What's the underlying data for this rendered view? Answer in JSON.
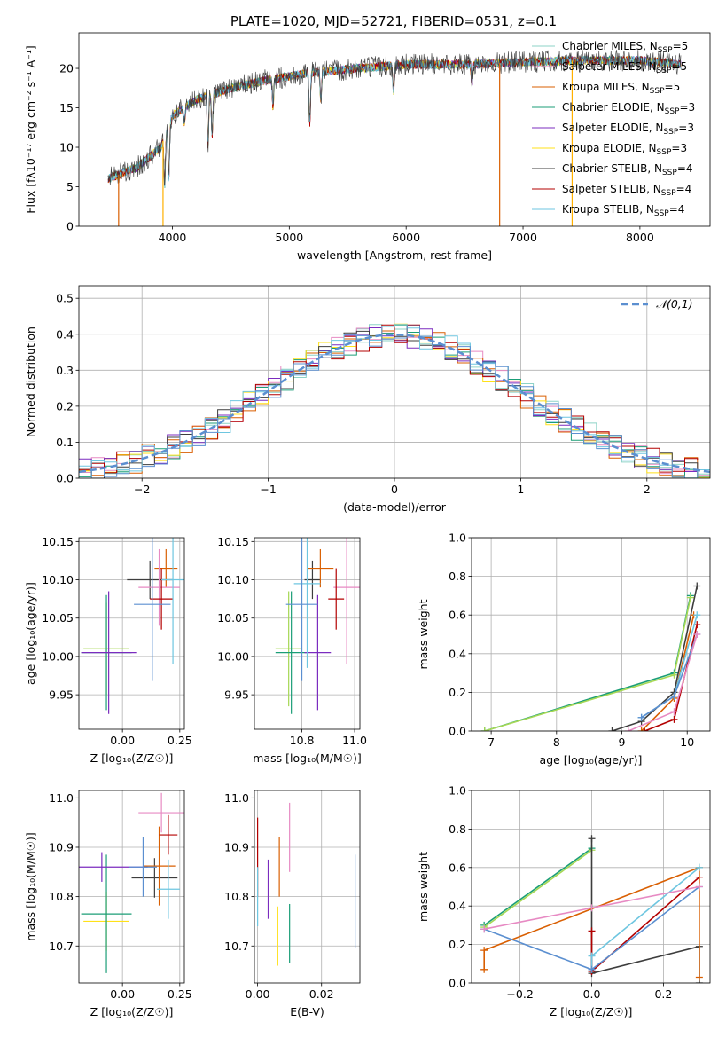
{
  "figure": {
    "title": "PLATE=1020, MJD=52721, FIBERID=0531, z=0.1",
    "colors": [
      "#8dd3c7",
      "#e78ac3",
      "#d95f02",
      "#1b9e77",
      "#7b2cbf",
      "#ffe119",
      "#3d3d3d",
      "#b30000",
      "#6ec6e0"
    ]
  },
  "chart_data": [
    {
      "id": "spectrum",
      "type": "line",
      "xlabel": "wavelength [Angstrom, rest frame]",
      "ylabel": "Flux [fλ10⁻¹⁷ erg cm⁻² s⁻¹ A⁻¹]",
      "xlim": [
        3200,
        8600
      ],
      "ylim": [
        0,
        24.5
      ],
      "xticks": [
        4000,
        5000,
        6000,
        7000,
        8000
      ],
      "yticks": [
        0,
        5,
        10,
        15,
        20
      ],
      "legend": "top-right",
      "series": [
        {
          "name": "Chabrier MILES, N_SSP=5",
          "color": "#8dd3c7"
        },
        {
          "name": "Salpeter MILES, N_SSP=5",
          "color": "#e78ac3"
        },
        {
          "name": "Kroupa MILES, N_SSP=5",
          "color": "#d95f02"
        },
        {
          "name": "Chabrier ELODIE, N_SSP=3",
          "color": "#1b9e77"
        },
        {
          "name": "Salpeter ELODIE, N_SSP=3",
          "color": "#7b2cbf"
        },
        {
          "name": "Kroupa ELODIE, N_SSP=3",
          "color": "#ffe119"
        },
        {
          "name": "Chabrier STELIB, N_SSP=4",
          "color": "#3d3d3d"
        },
        {
          "name": "Salpeter STELIB, N_SSP=4",
          "color": "#b30000"
        },
        {
          "name": "Kroupa STELIB, N_SSP=4",
          "color": "#6ec6e0"
        }
      ],
      "continuum": {
        "x": [
          3450,
          3700,
          3900,
          4000,
          4200,
          4500,
          4800,
          5200,
          5600,
          6000,
          6500,
          7000,
          7500,
          8000,
          8350
        ],
        "y": [
          6.0,
          7.5,
          10.0,
          14.0,
          16.0,
          17.5,
          18.5,
          19.5,
          20.0,
          20.5,
          20.5,
          20.8,
          21.0,
          21.0,
          20.5
        ]
      },
      "absorption_lines": [
        {
          "x": 3934,
          "y": 5.0
        },
        {
          "x": 3969,
          "y": 6.0
        },
        {
          "x": 4102,
          "y": 13.0
        },
        {
          "x": 4304,
          "y": 10.0
        },
        {
          "x": 4340,
          "y": 11.5
        },
        {
          "x": 4861,
          "y": 15.0
        },
        {
          "x": 5175,
          "y": 13.0
        },
        {
          "x": 5270,
          "y": 16.0
        },
        {
          "x": 5892,
          "y": 17.0
        },
        {
          "x": 6563,
          "y": 18.0
        }
      ],
      "spikes": [
        {
          "x": 3540,
          "y": 0
        },
        {
          "x": 3920,
          "y": 0
        },
        {
          "x": 6800,
          "y": 0
        },
        {
          "x": 7420,
          "y": 0
        }
      ]
    },
    {
      "id": "residuals",
      "type": "area",
      "xlabel": "(data-model)/error",
      "ylabel": "Normed distribution",
      "xlim": [
        -2.5,
        2.5
      ],
      "ylim": [
        0,
        0.535
      ],
      "xticks": [
        -2,
        -1,
        0,
        1,
        2
      ],
      "yticks": [
        0.0,
        0.1,
        0.2,
        0.3,
        0.4,
        0.5
      ],
      "grid": true,
      "legend": "top-right",
      "reference": {
        "name": "𝒩(0,1)",
        "color": "#5b8fd0",
        "style": "dashed"
      },
      "bin_width": 0.1
    },
    {
      "id": "age-vs-Z",
      "type": "scatter",
      "xlabel": "Z [log₁₀(Z/Z☉)]",
      "ylabel": "age  [log₁₀(age/yr)]",
      "xlim": [
        -0.19,
        0.27
      ],
      "ylim": [
        9.905,
        10.155
      ],
      "xticks": [
        0.0,
        0.25
      ],
      "yticks": [
        9.95,
        10.0,
        10.05,
        10.1,
        10.15
      ],
      "grid": true,
      "points": [
        {
          "x": -0.07,
          "y": 10.01,
          "xerr": 0.1,
          "yerr": 0.06,
          "color": "#a6d854"
        },
        {
          "x": -0.07,
          "y": 10.005,
          "xerr": 0.11,
          "yerr": 0.075,
          "color": "#1b9e77"
        },
        {
          "x": -0.06,
          "y": 10.005,
          "xerr": 0.12,
          "yerr": 0.08,
          "color": "#7b2cbf"
        },
        {
          "x": 0.12,
          "y": 10.1,
          "xerr": 0.1,
          "yerr": 0.025,
          "color": "#3d3d3d"
        },
        {
          "x": 0.19,
          "y": 10.115,
          "xerr": 0.05,
          "yerr": 0.025,
          "color": "#d95f02"
        },
        {
          "x": 0.16,
          "y": 10.09,
          "xerr": 0.09,
          "yerr": 0.05,
          "color": "#e78ac3"
        },
        {
          "x": 0.17,
          "y": 10.075,
          "xerr": 0.05,
          "yerr": 0.04,
          "color": "#b30000"
        },
        {
          "x": 0.22,
          "y": 10.1,
          "xerr": 0.05,
          "yerr": 0.11,
          "color": "#6ec6e0"
        },
        {
          "x": 0.13,
          "y": 10.068,
          "xerr": 0.08,
          "yerr": 0.1,
          "color": "#5b8fd0"
        }
      ]
    },
    {
      "id": "age-vs-mass",
      "type": "scatter",
      "xlabel": "mass [log₁₀(M/M☉)]",
      "ylabel": "",
      "xlim": [
        10.62,
        11.02
      ],
      "ylim": [
        9.905,
        10.155
      ],
      "xticks": [
        10.8,
        11.0
      ],
      "yticks": [
        9.95,
        10.0,
        10.05,
        10.1,
        10.15
      ],
      "grid": true,
      "points": [
        {
          "x": 10.75,
          "y": 10.01,
          "xerr": 0.05,
          "yerr": 0.075,
          "color": "#a6d854"
        },
        {
          "x": 10.76,
          "y": 10.005,
          "xerr": 0.06,
          "yerr": 0.08,
          "color": "#1b9e77"
        },
        {
          "x": 10.86,
          "y": 10.005,
          "xerr": 0.05,
          "yerr": 0.075,
          "color": "#7b2cbf"
        },
        {
          "x": 10.84,
          "y": 10.1,
          "xerr": 0.03,
          "yerr": 0.025,
          "color": "#3d3d3d"
        },
        {
          "x": 10.87,
          "y": 10.115,
          "xerr": 0.05,
          "yerr": 0.025,
          "color": "#d95f02"
        },
        {
          "x": 10.97,
          "y": 10.09,
          "xerr": 0.05,
          "yerr": 0.1,
          "color": "#e78ac3"
        },
        {
          "x": 10.93,
          "y": 10.075,
          "xerr": 0.03,
          "yerr": 0.04,
          "color": "#b30000"
        },
        {
          "x": 10.82,
          "y": 10.095,
          "xerr": 0.05,
          "yerr": 0.11,
          "color": "#6ec6e0"
        },
        {
          "x": 10.8,
          "y": 10.068,
          "xerr": 0.06,
          "yerr": 0.1,
          "color": "#5b8fd0"
        }
      ]
    },
    {
      "id": "weight-vs-age",
      "type": "line",
      "xlabel": "age  [log₁₀(age/yr)]",
      "ylabel": "mass weight",
      "xlim": [
        6.7,
        10.35
      ],
      "ylim": [
        0.0,
        1.0
      ],
      "xticks": [
        7,
        8,
        9,
        10
      ],
      "yticks": [
        0.0,
        0.2,
        0.4,
        0.6,
        0.8,
        1.0
      ],
      "grid": true,
      "series": [
        {
          "color": "#1b9e77",
          "x": [
            6.9,
            9.8,
            10.05
          ],
          "y": [
            0.0,
            0.3,
            0.7
          ]
        },
        {
          "color": "#a6d854",
          "x": [
            6.9,
            9.8,
            10.05
          ],
          "y": [
            0.0,
            0.29,
            0.69
          ]
        },
        {
          "color": "#3d3d3d",
          "x": [
            8.85,
            9.3,
            9.8,
            10.15
          ],
          "y": [
            0.0,
            0.05,
            0.2,
            0.75
          ]
        },
        {
          "color": "#b30000",
          "x": [
            9.35,
            9.8,
            10.15
          ],
          "y": [
            0.0,
            0.06,
            0.55
          ]
        },
        {
          "color": "#d95f02",
          "x": [
            9.3,
            9.8,
            10.1
          ],
          "y": [
            0.0,
            0.17,
            0.6
          ]
        },
        {
          "color": "#6ec6e0",
          "x": [
            9.3,
            9.8,
            10.15
          ],
          "y": [
            0.07,
            0.18,
            0.6
          ]
        },
        {
          "color": "#5b8fd0",
          "x": [
            9.3,
            9.8,
            10.15
          ],
          "y": [
            0.07,
            0.18,
            0.5
          ]
        },
        {
          "color": "#e78ac3",
          "x": [
            9.1,
            9.8,
            10.15
          ],
          "y": [
            0.0,
            0.1,
            0.5
          ]
        }
      ]
    },
    {
      "id": "mass-vs-Z",
      "type": "scatter",
      "xlabel": "Z [log₁₀(Z/Z☉)]",
      "ylabel": "mass [log₁₀(M/M☉)]",
      "xlim": [
        -0.19,
        0.27
      ],
      "ylim": [
        10.625,
        11.015
      ],
      "xticks": [
        0.0,
        0.25
      ],
      "yticks": [
        10.7,
        10.8,
        10.9,
        11.0
      ],
      "grid": true,
      "points": [
        {
          "x": -0.07,
          "y": 10.75,
          "xerr": 0.1,
          "yerr": 0.06,
          "color": "#ffe119"
        },
        {
          "x": -0.07,
          "y": 10.765,
          "xerr": 0.11,
          "yerr": 0.12,
          "color": "#1b9e77"
        },
        {
          "x": -0.09,
          "y": 10.86,
          "xerr": 0.2,
          "yerr": 0.03,
          "color": "#7b2cbf"
        },
        {
          "x": 0.14,
          "y": 10.838,
          "xerr": 0.1,
          "yerr": 0.04,
          "color": "#3d3d3d"
        },
        {
          "x": 0.16,
          "y": 10.862,
          "xerr": 0.07,
          "yerr": 0.08,
          "color": "#d95f02"
        },
        {
          "x": 0.17,
          "y": 10.97,
          "xerr": 0.1,
          "yerr": 0.04,
          "color": "#e78ac3"
        },
        {
          "x": 0.2,
          "y": 10.925,
          "xerr": 0.04,
          "yerr": 0.04,
          "color": "#b30000"
        },
        {
          "x": 0.2,
          "y": 10.815,
          "xerr": 0.05,
          "yerr": 0.06,
          "color": "#6ec6e0"
        },
        {
          "x": 0.09,
          "y": 10.86,
          "xerr": 0.06,
          "yerr": 0.06,
          "color": "#5b8fd0"
        }
      ]
    },
    {
      "id": "mass-vs-ebv",
      "type": "scatter",
      "xlabel": "E(B-V)",
      "ylabel": "",
      "xlim": [
        -0.001,
        0.032
      ],
      "ylim": [
        10.625,
        11.015
      ],
      "xticks": [
        0.0,
        0.02
      ],
      "yticks": [
        10.7,
        10.8,
        10.9,
        11.0
      ],
      "grid": true,
      "points": [
        {
          "x": 0.0,
          "y": 10.88,
          "yerr": 0.08,
          "color": "#b30000"
        },
        {
          "x": 0.0,
          "y": 10.8,
          "yerr": 0.06,
          "color": "#6ec6e0"
        },
        {
          "x": 0.0033,
          "y": 10.815,
          "yerr": 0.06,
          "color": "#7b2cbf"
        },
        {
          "x": 0.0063,
          "y": 10.72,
          "yerr": 0.06,
          "color": "#ffe119"
        },
        {
          "x": 0.0068,
          "y": 10.86,
          "yerr": 0.06,
          "color": "#d95f02"
        },
        {
          "x": 0.01,
          "y": 10.92,
          "yerr": 0.07,
          "color": "#e78ac3"
        },
        {
          "x": 0.01,
          "y": 10.725,
          "yerr": 0.06,
          "color": "#1b9e77"
        },
        {
          "x": 0.0305,
          "y": 10.79,
          "yerr": 0.095,
          "color": "#5b8fd0"
        }
      ]
    },
    {
      "id": "weight-vs-Z",
      "type": "line",
      "xlabel": "Z [log₁₀(Z/Z☉)]",
      "ylabel": "mass weight",
      "xlim": [
        -0.335,
        0.33
      ],
      "ylim": [
        0.0,
        1.0
      ],
      "xticks": [
        -0.2,
        0.0,
        0.2
      ],
      "yticks": [
        0.0,
        0.2,
        0.4,
        0.6,
        0.8,
        1.0
      ],
      "grid": true,
      "series": [
        {
          "color": "#1b9e77",
          "x": [
            -0.3,
            0.0
          ],
          "y": [
            0.3,
            0.7
          ]
        },
        {
          "color": "#a6d854",
          "x": [
            -0.3,
            0.0
          ],
          "y": [
            0.29,
            0.69
          ]
        },
        {
          "color": "#3d3d3d",
          "x": [
            0.0,
            0.0,
            0.3,
            0.3
          ],
          "y": [
            0.75,
            0.05,
            0.19,
            0.0
          ]
        },
        {
          "color": "#b30000",
          "x": [
            0.0,
            0.0,
            0.3
          ],
          "y": [
            0.27,
            0.06,
            0.55
          ]
        },
        {
          "color": "#d95f02",
          "x": [
            -0.3,
            -0.3,
            0.3,
            0.3
          ],
          "y": [
            0.07,
            0.17,
            0.6,
            0.03
          ]
        },
        {
          "color": "#6ec6e0",
          "x": [
            0.0,
            0.0,
            0.3
          ],
          "y": [
            0.07,
            0.14,
            0.6
          ]
        },
        {
          "color": "#5b8fd0",
          "x": [
            -0.3,
            0.0,
            0.3
          ],
          "y": [
            0.28,
            0.07,
            0.5
          ]
        },
        {
          "color": "#e78ac3",
          "x": [
            -0.3,
            0.0,
            0.3
          ],
          "y": [
            0.28,
            0.39,
            0.5
          ]
        }
      ]
    }
  ]
}
